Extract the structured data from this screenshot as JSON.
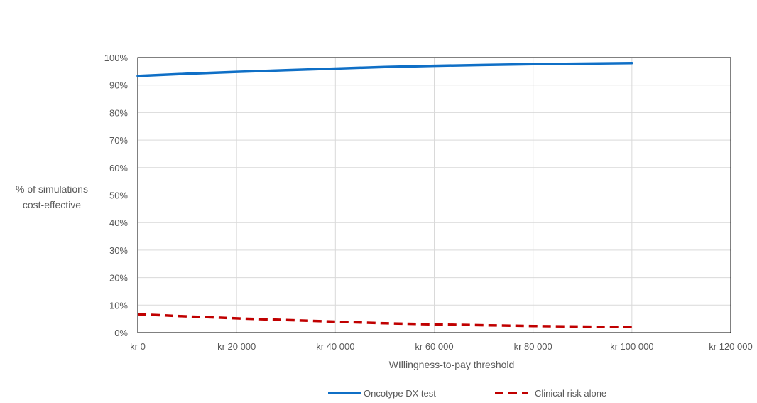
{
  "chart_data": {
    "type": "line",
    "title": "",
    "xlabel": "WIllingness-to-pay threshold",
    "ylabel_lines": [
      "% of simulations",
      "cost-effective"
    ],
    "x_tick_labels": [
      "kr 0",
      "kr 20 000",
      "kr 40 000",
      "kr 60 000",
      "kr 80 000",
      "kr 100 000",
      "kr 120 000"
    ],
    "x_ticks": [
      0,
      20000,
      40000,
      60000,
      80000,
      100000,
      120000
    ],
    "y_tick_labels": [
      "0%",
      "10%",
      "20%",
      "30%",
      "40%",
      "50%",
      "60%",
      "70%",
      "80%",
      "90%",
      "100%"
    ],
    "y_ticks": [
      0,
      10,
      20,
      30,
      40,
      50,
      60,
      70,
      80,
      90,
      100
    ],
    "xlim": [
      0,
      120000
    ],
    "ylim": [
      0,
      100
    ],
    "grid": true,
    "legend_position": "bottom",
    "series": [
      {
        "name": "Oncotype DX test",
        "color": "#0f6fc6",
        "dash": "solid",
        "x": [
          0,
          10000,
          20000,
          30000,
          40000,
          50000,
          60000,
          70000,
          80000,
          90000,
          100000
        ],
        "y": [
          93.3,
          94.1,
          94.8,
          95.4,
          96.0,
          96.6,
          97.0,
          97.3,
          97.6,
          97.8,
          98.0
        ]
      },
      {
        "name": "Clinical risk alone",
        "color": "#c00000",
        "dash": "dashed",
        "x": [
          0,
          10000,
          20000,
          30000,
          40000,
          50000,
          60000,
          70000,
          80000,
          90000,
          100000
        ],
        "y": [
          6.7,
          5.9,
          5.2,
          4.6,
          4.0,
          3.4,
          3.0,
          2.7,
          2.4,
          2.2,
          2.0
        ]
      }
    ]
  }
}
